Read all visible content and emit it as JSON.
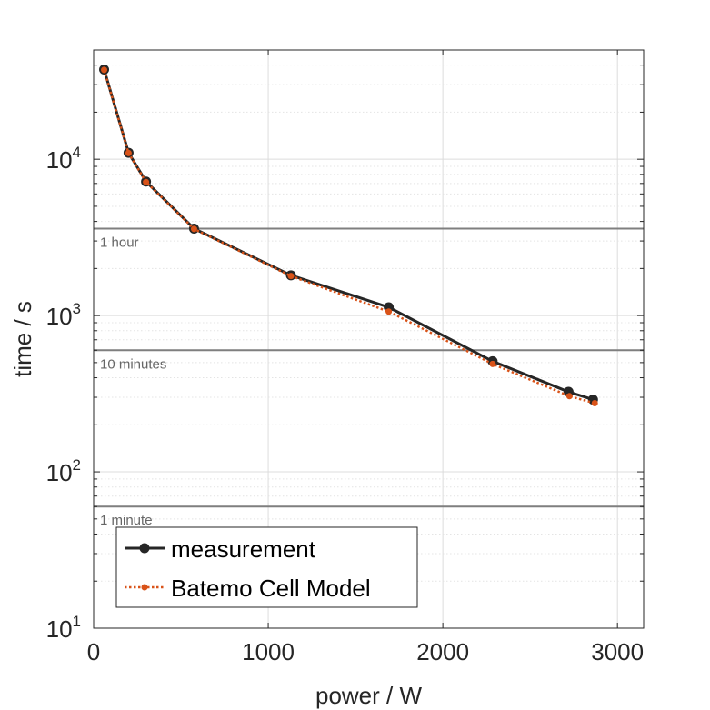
{
  "chart_data": {
    "type": "line",
    "xlabel": "power / W",
    "ylabel": "time / s",
    "xlim": [
      0,
      3150
    ],
    "ylim": [
      10,
      50000
    ],
    "yscale": "log",
    "grid": "on",
    "x_ticks": [
      "0",
      "1000",
      "2000",
      "3000"
    ],
    "y_ticks": [
      {
        "base": "10",
        "exp": "1"
      },
      {
        "base": "10",
        "exp": "2"
      },
      {
        "base": "10",
        "exp": "3"
      },
      {
        "base": "10",
        "exp": "4"
      }
    ],
    "reference_lines": [
      {
        "label": "1 hour",
        "value": 3600
      },
      {
        "label": "10 minutes",
        "value": 600
      },
      {
        "label": "1 minute",
        "value": 60
      }
    ],
    "legend_position": "bottom-left",
    "series": [
      {
        "name": "measurement",
        "color": "#262626",
        "style": "solid",
        "marker": "circle",
        "x": [
          60,
          200,
          300,
          575,
          1130,
          1690,
          2285,
          2720,
          2860
        ],
        "y": [
          37500,
          11000,
          7200,
          3600,
          1810,
          1130,
          510,
          325,
          290
        ]
      },
      {
        "name": "Batemo Cell Model",
        "color": "#D95319",
        "style": "dotted",
        "marker": "dot",
        "x": [
          60,
          200,
          300,
          575,
          1130,
          1690,
          2285,
          2725,
          2870
        ],
        "y": [
          37300,
          10950,
          7150,
          3580,
          1790,
          1060,
          490,
          305,
          275
        ]
      }
    ]
  }
}
